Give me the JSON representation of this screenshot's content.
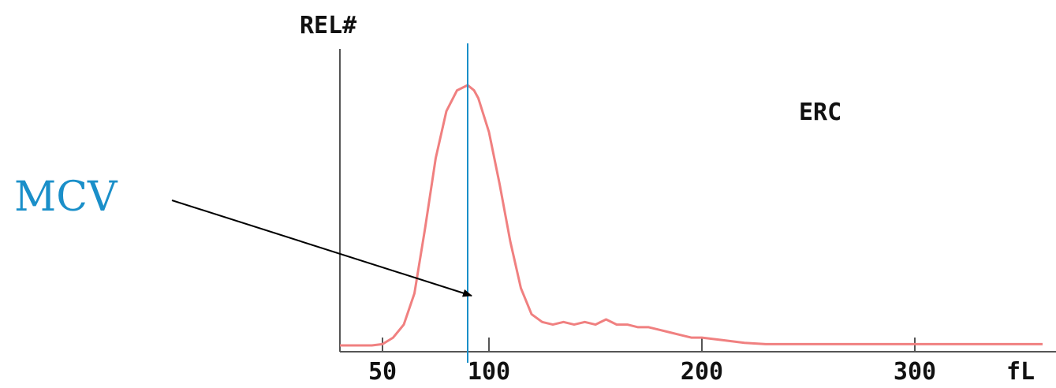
{
  "colors": {
    "curve": "#f08080",
    "mcv_line": "#1a8fc9",
    "axis": "#555555",
    "text": "#111111",
    "arrow": "#000000"
  },
  "chart_data": {
    "type": "line",
    "title": "",
    "ylabel": "REL#",
    "xlabel": "fL",
    "xlim": [
      30,
      360
    ],
    "ylim": [
      0,
      100
    ],
    "xticks": [
      50,
      100,
      200,
      300
    ],
    "xtick_labels": [
      "50",
      "100",
      "200",
      "300"
    ],
    "grid": false,
    "series": [
      {
        "name": "ERC",
        "x": [
          30,
          45,
          50,
          55,
          60,
          65,
          70,
          75,
          80,
          85,
          90,
          93,
          95,
          100,
          105,
          110,
          115,
          120,
          125,
          130,
          135,
          140,
          145,
          150,
          155,
          160,
          165,
          170,
          175,
          180,
          185,
          190,
          195,
          200,
          210,
          220,
          230,
          240,
          250,
          260,
          270,
          280,
          290,
          300,
          320,
          340,
          360
        ],
        "y": [
          0,
          0,
          0.5,
          3,
          8,
          20,
          45,
          72,
          90,
          98,
          100,
          98,
          95,
          82,
          62,
          40,
          22,
          12,
          9,
          8,
          9,
          8,
          9,
          8,
          10,
          8,
          8,
          7,
          7,
          6,
          5,
          4,
          3,
          3,
          2,
          1,
          0.5,
          0.5,
          0.5,
          0.5,
          0.5,
          0.5,
          0.5,
          0.5,
          0.5,
          0.5,
          0.5
        ]
      }
    ],
    "mcv_x": 90,
    "annotation": "MCV"
  }
}
